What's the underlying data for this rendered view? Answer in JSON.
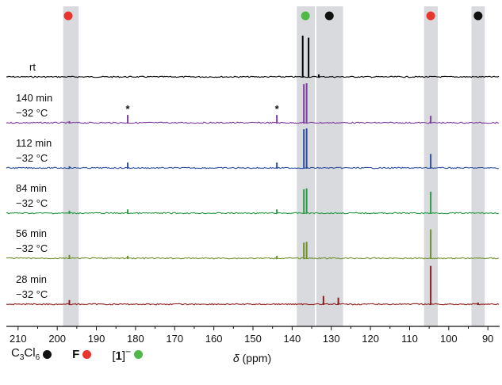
{
  "chart_data": {
    "type": "line",
    "title": "",
    "xlabel_symbol": "δ",
    "xlabel_unit": "(ppm)",
    "xlim": [
      213,
      87
    ],
    "x_ticks": [
      210,
      200,
      190,
      180,
      170,
      160,
      150,
      140,
      130,
      120,
      110,
      100,
      90
    ],
    "highlight_bands": [
      {
        "from": 198.5,
        "to": 194.5,
        "marker_color": "#e8352d",
        "marker_at": 197.2
      },
      {
        "from": 138.8,
        "to": 134.2,
        "marker_color": "#4fb848",
        "marker_at": 136.6
      },
      {
        "from": 133.8,
        "to": 127.0,
        "marker_color": "#111111",
        "marker_at": 130.5
      },
      {
        "from": 106.3,
        "to": 102.8,
        "marker_color": "#e8352d",
        "marker_at": 104.6
      },
      {
        "from": 94.2,
        "to": 90.8,
        "marker_color": "#111111",
        "marker_at": 92.5
      }
    ],
    "series": [
      {
        "name": "rt",
        "name2": "",
        "color": "#000000",
        "peaks": [
          [
            137.3,
            1.0
          ],
          [
            135.8,
            0.95
          ],
          [
            133.2,
            0.06
          ]
        ]
      },
      {
        "name": "140 min",
        "name2": "−32 °C",
        "color": "#7e3fa0",
        "peaks": [
          [
            196.9,
            0.04
          ],
          [
            182.0,
            0.19
          ],
          [
            143.9,
            0.19
          ],
          [
            137.0,
            0.94
          ],
          [
            136.3,
            0.96
          ],
          [
            104.6,
            0.17
          ]
        ],
        "asterisks": [
          182.0,
          143.9
        ]
      },
      {
        "name": "112 min",
        "name2": "−32 °C",
        "color": "#2e4f9e",
        "peaks": [
          [
            196.9,
            0.04
          ],
          [
            182.0,
            0.13
          ],
          [
            143.9,
            0.13
          ],
          [
            137.0,
            0.94
          ],
          [
            136.3,
            0.96
          ],
          [
            104.6,
            0.34
          ]
        ]
      },
      {
        "name": "84 min",
        "name2": "−32 °C",
        "color": "#2f9a48",
        "peaks": [
          [
            196.9,
            0.06
          ],
          [
            182.0,
            0.09
          ],
          [
            143.9,
            0.09
          ],
          [
            137.0,
            0.58
          ],
          [
            136.3,
            0.6
          ],
          [
            104.6,
            0.52
          ]
        ]
      },
      {
        "name": "56 min",
        "name2": "−32 °C",
        "color": "#6e8f2a",
        "peaks": [
          [
            196.9,
            0.08
          ],
          [
            182.0,
            0.06
          ],
          [
            143.9,
            0.06
          ],
          [
            137.0,
            0.38
          ],
          [
            136.3,
            0.4
          ],
          [
            104.6,
            0.7
          ]
        ]
      },
      {
        "name": "28 min",
        "name2": "−32 °C",
        "color": "#8c1d1d",
        "peaks": [
          [
            196.9,
            0.1
          ],
          [
            132.0,
            0.2
          ],
          [
            128.2,
            0.16
          ],
          [
            104.6,
            0.93
          ],
          [
            92.5,
            0.04
          ]
        ]
      }
    ]
  },
  "legend": [
    {
      "text": "C",
      "sub": "3",
      "text2": "Cl",
      "sub2": "6",
      "bold": false,
      "color": "#111111"
    },
    {
      "text": "F",
      "bold": true,
      "color": "#e8352d"
    },
    {
      "text": "[1]",
      "sup": "−",
      "bold": false,
      "color": "#4fb848"
    }
  ]
}
